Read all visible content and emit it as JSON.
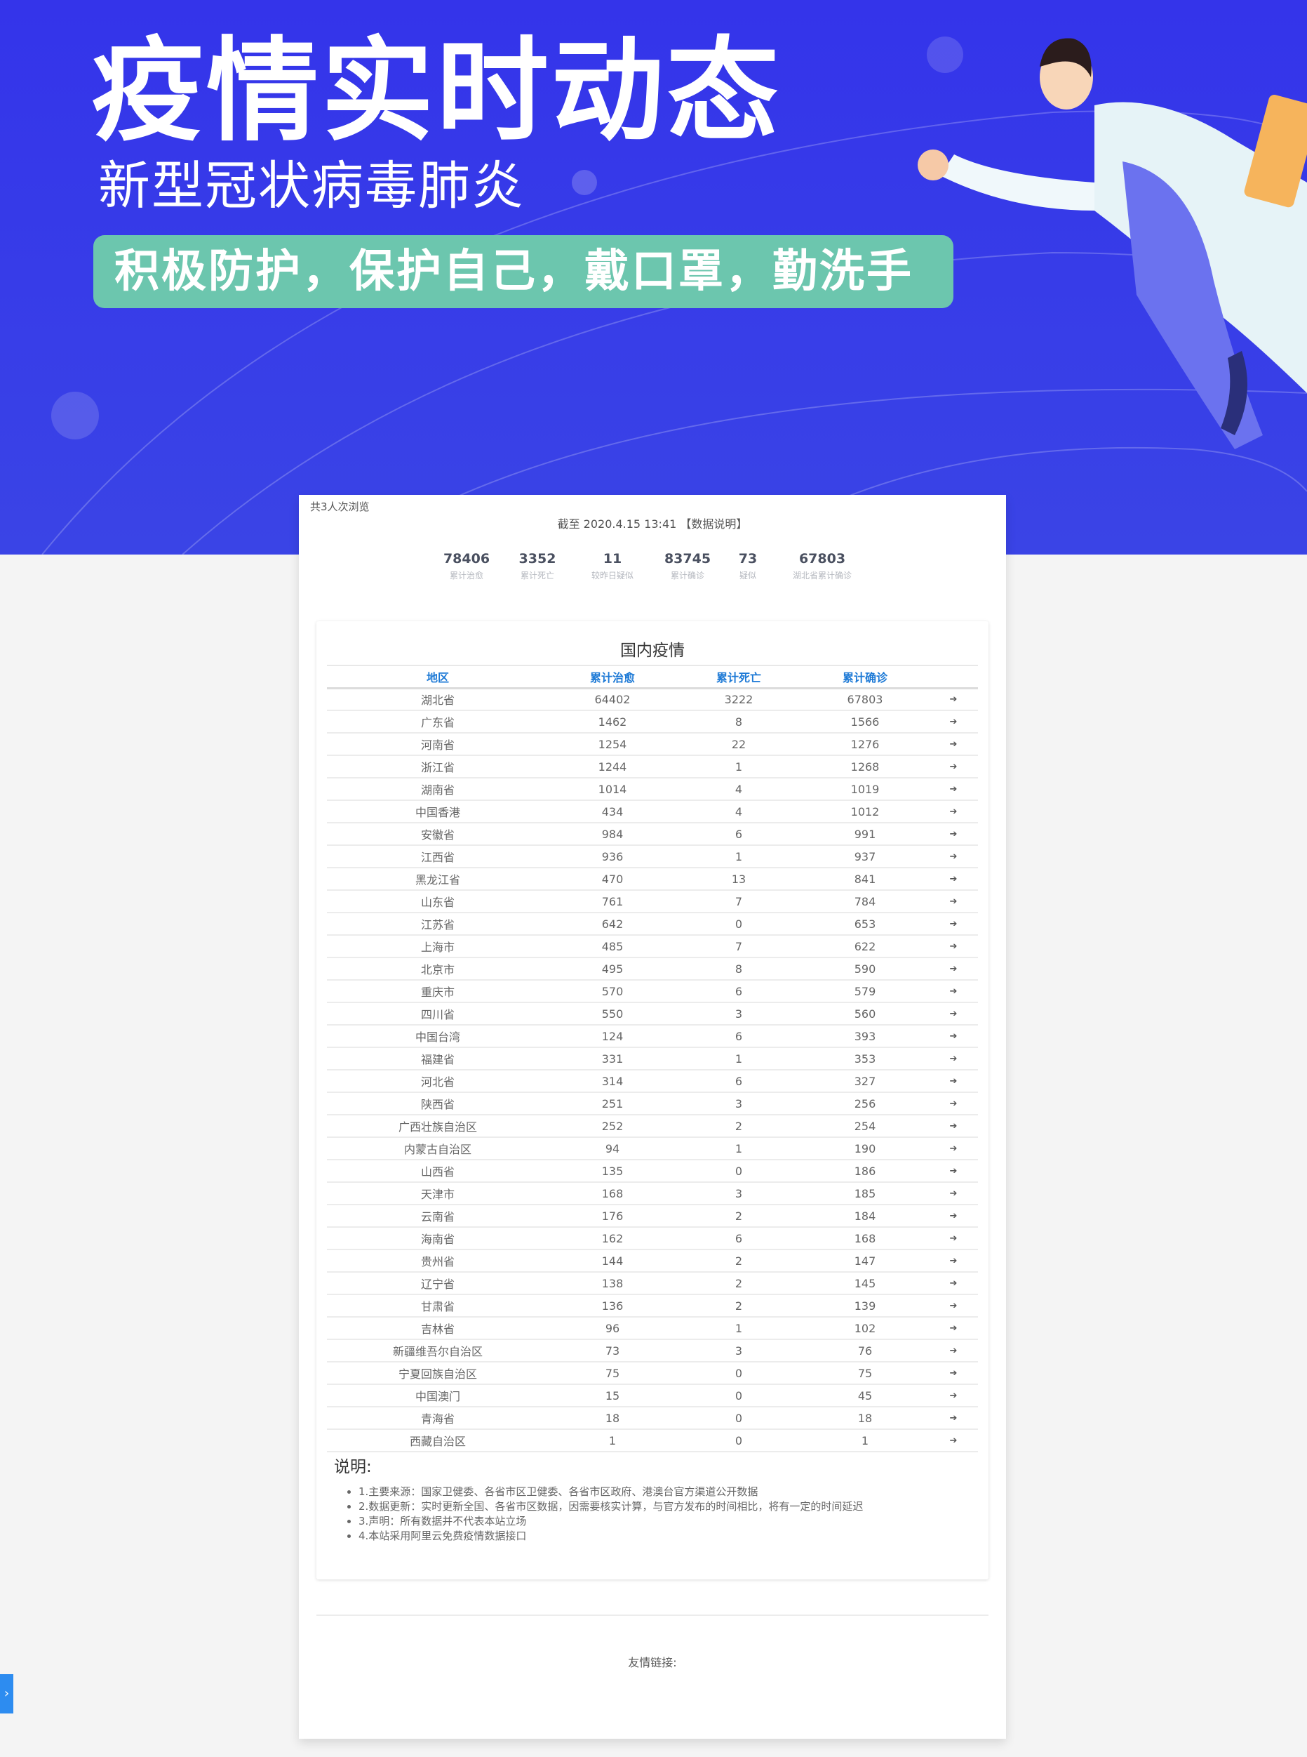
{
  "banner": {
    "title": "疫情实时动态",
    "subtitle": "新型冠状病毒肺炎",
    "slogan": "积极防护，保护自己，戴口罩，勤洗手",
    "bg_color": "#3434ea",
    "pill_color": "#6cc6ae"
  },
  "header": {
    "views": "共3人次浏览",
    "as_of": "截至 2020.4.15 13:41 【数据说明】"
  },
  "stats": [
    {
      "value": "78406",
      "label": "累计治愈"
    },
    {
      "value": "3352",
      "label": "累计死亡"
    },
    {
      "value": "11",
      "label": "较昨日疑似"
    },
    {
      "value": "83745",
      "label": "累计确诊"
    },
    {
      "value": "73",
      "label": "疑似"
    },
    {
      "value": "67803",
      "label": "湖北省累计确诊"
    }
  ],
  "domestic": {
    "title": "国内疫情",
    "columns": [
      "地区",
      "累计治愈",
      "累计死亡",
      "累计确诊"
    ],
    "row_icon": "sign-in-icon",
    "rows": [
      [
        "湖北省",
        "64402",
        "3222",
        "67803"
      ],
      [
        "广东省",
        "1462",
        "8",
        "1566"
      ],
      [
        "河南省",
        "1254",
        "22",
        "1276"
      ],
      [
        "浙江省",
        "1244",
        "1",
        "1268"
      ],
      [
        "湖南省",
        "1014",
        "4",
        "1019"
      ],
      [
        "中国香港",
        "434",
        "4",
        "1012"
      ],
      [
        "安徽省",
        "984",
        "6",
        "991"
      ],
      [
        "江西省",
        "936",
        "1",
        "937"
      ],
      [
        "黑龙江省",
        "470",
        "13",
        "841"
      ],
      [
        "山东省",
        "761",
        "7",
        "784"
      ],
      [
        "江苏省",
        "642",
        "0",
        "653"
      ],
      [
        "上海市",
        "485",
        "7",
        "622"
      ],
      [
        "北京市",
        "495",
        "8",
        "590"
      ],
      [
        "重庆市",
        "570",
        "6",
        "579"
      ],
      [
        "四川省",
        "550",
        "3",
        "560"
      ],
      [
        "中国台湾",
        "124",
        "6",
        "393"
      ],
      [
        "福建省",
        "331",
        "1",
        "353"
      ],
      [
        "河北省",
        "314",
        "6",
        "327"
      ],
      [
        "陕西省",
        "251",
        "3",
        "256"
      ],
      [
        "广西壮族自治区",
        "252",
        "2",
        "254"
      ],
      [
        "内蒙古自治区",
        "94",
        "1",
        "190"
      ],
      [
        "山西省",
        "135",
        "0",
        "186"
      ],
      [
        "天津市",
        "168",
        "3",
        "185"
      ],
      [
        "云南省",
        "176",
        "2",
        "184"
      ],
      [
        "海南省",
        "162",
        "6",
        "168"
      ],
      [
        "贵州省",
        "144",
        "2",
        "147"
      ],
      [
        "辽宁省",
        "138",
        "2",
        "145"
      ],
      [
        "甘肃省",
        "136",
        "2",
        "139"
      ],
      [
        "吉林省",
        "96",
        "1",
        "102"
      ],
      [
        "新疆维吾尔自治区",
        "73",
        "3",
        "76"
      ],
      [
        "宁夏回族自治区",
        "75",
        "0",
        "75"
      ],
      [
        "中国澳门",
        "15",
        "0",
        "45"
      ],
      [
        "青海省",
        "18",
        "0",
        "18"
      ],
      [
        "西藏自治区",
        "1",
        "0",
        "1"
      ]
    ]
  },
  "notes": {
    "title": "说明:",
    "items": [
      "1.主要来源：国家卫健委、各省市区卫健委、各省市区政府、港澳台官方渠道公开数据",
      "2.数据更新：实时更新全国、各省市区数据，因需要核实计算，与官方发布的时间相比，将有一定的时间延迟",
      "3.声明：所有数据并不代表本站立场",
      "4.本站采用阿里云免费疫情数据接口"
    ]
  },
  "footer": {
    "friends_label": "友情链接:"
  },
  "side_tab": {
    "icon": "chevron-right-icon",
    "glyph": "›"
  }
}
